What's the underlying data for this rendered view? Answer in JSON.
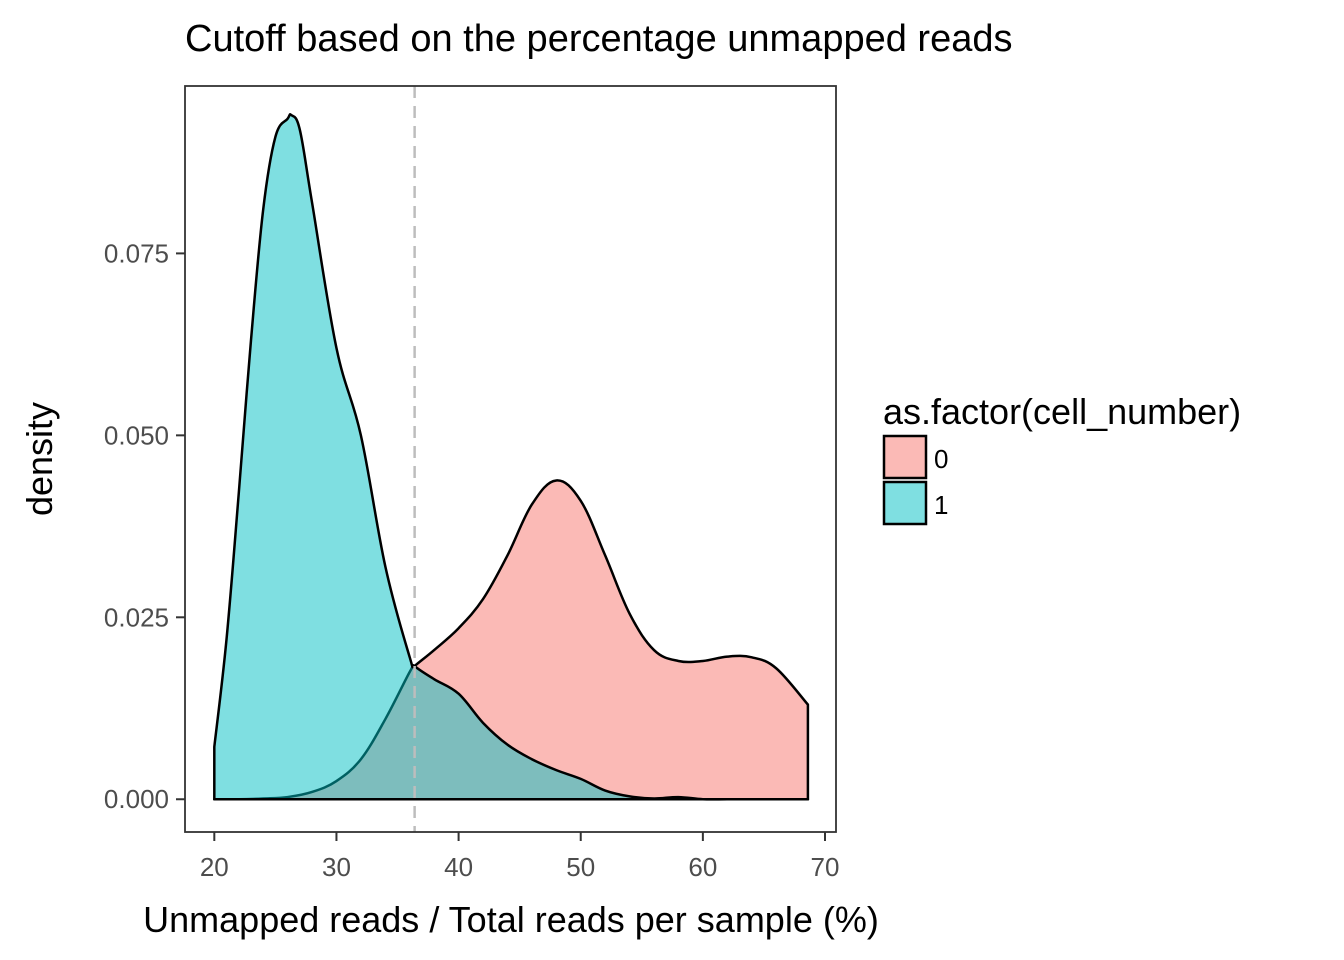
{
  "chart_data": {
    "type": "area",
    "subtype": "density",
    "title": "Cutoff based on the percentage unmapped reads",
    "xlabel": "Unmapped reads / Total reads per sample (%)",
    "ylabel": "density",
    "xlim": [
      17.6,
      70.9
    ],
    "ylim": [
      -0.0045,
      0.098
    ],
    "xticks": [
      20,
      30,
      40,
      50,
      60,
      70
    ],
    "xtick_labels": [
      "20",
      "30",
      "40",
      "50",
      "60",
      "70"
    ],
    "yticks": [
      0.0,
      0.025,
      0.05,
      0.075
    ],
    "ytick_labels": [
      "0.000",
      "0.025",
      "0.050",
      "0.075"
    ],
    "grid": false,
    "legend": {
      "title": "as.factor(cell_number)",
      "position": "right",
      "entries": [
        {
          "label": "0",
          "color": "#F8766D"
        },
        {
          "label": "1",
          "color": "#00BFC4"
        }
      ]
    },
    "cutoff_line": {
      "x": 36.4,
      "style": "dashed",
      "color": "#bdbdbd"
    },
    "series": [
      {
        "name": "0",
        "color": "#F8766D",
        "x": [
          20,
          22,
          24,
          26,
          28,
          30,
          32,
          34,
          36,
          36.4,
          38,
          40,
          42,
          44,
          46,
          48,
          50,
          52,
          54,
          56,
          58,
          60,
          62,
          64,
          66,
          68.6
        ],
        "y": [
          0.0,
          0.0,
          0.0001,
          0.0003,
          0.001,
          0.0025,
          0.0055,
          0.011,
          0.0175,
          0.0183,
          0.0205,
          0.0235,
          0.0275,
          0.0335,
          0.0405,
          0.0438,
          0.041,
          0.0335,
          0.0255,
          0.0205,
          0.019,
          0.019,
          0.0196,
          0.0195,
          0.018,
          0.013
        ]
      },
      {
        "name": "1",
        "color": "#00BFC4",
        "x": [
          20,
          21,
          22,
          23,
          24,
          25,
          26,
          26.3,
          27,
          28,
          30,
          32,
          34,
          36,
          36.4,
          38,
          40,
          42,
          44,
          46,
          48,
          50,
          52,
          54,
          56,
          58,
          60,
          62,
          64,
          66,
          68.6
        ],
        "y": [
          0.0072,
          0.022,
          0.042,
          0.063,
          0.081,
          0.091,
          0.0935,
          0.094,
          0.092,
          0.082,
          0.062,
          0.05,
          0.032,
          0.0195,
          0.0183,
          0.0165,
          0.0145,
          0.0105,
          0.0075,
          0.0055,
          0.004,
          0.0028,
          0.0012,
          0.0004,
          0.0001,
          0.0003,
          0.0,
          0.0,
          0.0,
          0.0,
          0.0
        ]
      }
    ]
  }
}
